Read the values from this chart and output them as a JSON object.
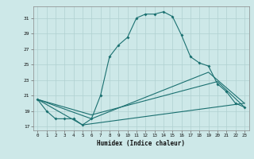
{
  "xlabel": "Humidex (Indice chaleur)",
  "bg_color": "#cde8e8",
  "grid_color": "#b0d0d0",
  "line_color": "#1a7070",
  "xlim": [
    -0.5,
    23.5
  ],
  "ylim": [
    16.5,
    32.5
  ],
  "yticks": [
    17,
    19,
    21,
    23,
    25,
    27,
    29,
    31
  ],
  "xticks": [
    0,
    1,
    2,
    3,
    4,
    5,
    6,
    7,
    8,
    9,
    10,
    11,
    12,
    13,
    14,
    15,
    16,
    17,
    18,
    19,
    20,
    21,
    22,
    23
  ],
  "series": [
    [
      0,
      20.5
    ],
    [
      1,
      19.0
    ],
    [
      2,
      18.0
    ],
    [
      3,
      18.0
    ],
    [
      4,
      18.0
    ],
    [
      5,
      17.2
    ],
    [
      6,
      18.0
    ],
    [
      7,
      21.0
    ],
    [
      8,
      26.0
    ],
    [
      9,
      27.5
    ],
    [
      10,
      28.5
    ],
    [
      11,
      31.0
    ],
    [
      12,
      31.5
    ],
    [
      13,
      31.5
    ],
    [
      14,
      31.8
    ],
    [
      15,
      31.2
    ],
    [
      16,
      28.8
    ],
    [
      17,
      26.0
    ],
    [
      18,
      25.2
    ],
    [
      19,
      24.8
    ],
    [
      20,
      22.5
    ],
    [
      21,
      21.5
    ],
    [
      22,
      20.0
    ],
    [
      23,
      19.5
    ]
  ],
  "series2": [
    [
      0,
      20.5
    ],
    [
      5,
      17.2
    ],
    [
      23,
      20.0
    ]
  ],
  "series3": [
    [
      0,
      20.5
    ],
    [
      6,
      18.0
    ],
    [
      19,
      24.0
    ],
    [
      23,
      20.0
    ]
  ],
  "series4": [
    [
      0,
      20.5
    ],
    [
      6,
      18.5
    ],
    [
      20,
      22.8
    ],
    [
      23,
      19.5
    ]
  ]
}
